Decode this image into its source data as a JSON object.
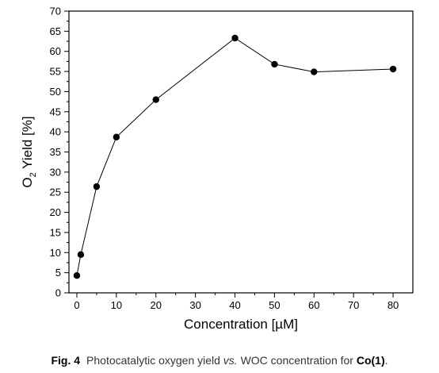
{
  "chart_data": {
    "type": "line",
    "title": "",
    "xlabel": "Concentration [µM]",
    "ylabel_main": "O",
    "ylabel_sub": "2",
    "ylabel_rest": " Yield [%]",
    "xlim": [
      -2,
      85
    ],
    "ylim": [
      0,
      70
    ],
    "xticks": [
      0,
      10,
      20,
      30,
      40,
      50,
      60,
      70,
      80
    ],
    "yticks": [
      0,
      5,
      10,
      15,
      20,
      25,
      30,
      35,
      40,
      45,
      50,
      55,
      60,
      65,
      70
    ],
    "grid": false,
    "markers": true,
    "series": [
      {
        "x": [
          0,
          1,
          5,
          10,
          20,
          40,
          50,
          60,
          80
        ],
        "y": [
          4.3,
          9.5,
          26.4,
          38.7,
          48.0,
          63.3,
          56.8,
          54.9,
          55.6
        ]
      }
    ],
    "colors": {
      "line": "#000000",
      "marker": "#000000",
      "axis": "#000000"
    }
  },
  "caption": {
    "fig_label": "Fig. 4",
    "text_1": "Photocatalytic oxygen yield ",
    "text_italic": "vs.",
    "text_2": " WOC concentration for ",
    "compound": "Co(1)",
    "end": "."
  }
}
